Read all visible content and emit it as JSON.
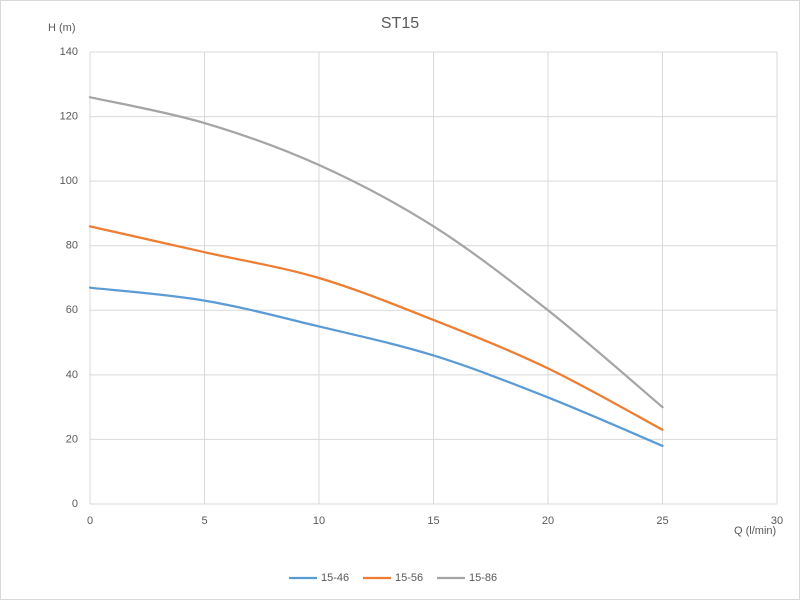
{
  "chart_data": {
    "type": "line",
    "title": "ST15",
    "y_label": "H (m)",
    "x_label": "Q (l/min)",
    "x": [
      0,
      5,
      10,
      15,
      20,
      25
    ],
    "series": [
      {
        "name": "15-46",
        "color": "#5b9bd5",
        "values": [
          67,
          63,
          55,
          46,
          33,
          18
        ]
      },
      {
        "name": "15-56",
        "color": "#ed7d31",
        "values": [
          86,
          78,
          70,
          57,
          42,
          23
        ]
      },
      {
        "name": "15-86",
        "color": "#a5a5a5",
        "values": [
          126,
          118,
          105,
          86,
          60,
          30
        ]
      }
    ],
    "xlim": [
      0,
      30
    ],
    "xticks": [
      0,
      5,
      10,
      15,
      20,
      25,
      30
    ],
    "ylim": [
      0,
      140
    ],
    "yticks": [
      0,
      20,
      40,
      60,
      80,
      100,
      120,
      140
    ],
    "grid": true,
    "legend": "bottom"
  }
}
